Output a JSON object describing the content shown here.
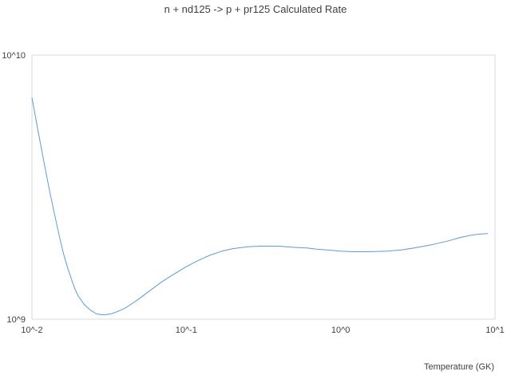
{
  "chart_data": {
    "type": "line",
    "title": "n + nd125 -> p + pr125 Calculated Rate",
    "xlabel": "Temperature (GK)",
    "ylabel": "",
    "x_scale": "log",
    "y_scale": "log",
    "xlim": [
      0.01,
      10
    ],
    "ylim": [
      1000000000,
      10000000000
    ],
    "x_ticks": [
      {
        "value": 0.01,
        "label": "10^-2"
      },
      {
        "value": 0.1,
        "label": "10^-1"
      },
      {
        "value": 1,
        "label": "10^0"
      },
      {
        "value": 10,
        "label": "10^1"
      }
    ],
    "y_ticks": [
      {
        "value": 1000000000,
        "label": "10^9"
      },
      {
        "value": 10000000000,
        "label": "10^10"
      }
    ],
    "grid": false,
    "legend": "none",
    "colors": {
      "series": "#5b9bd5",
      "frame": "#d9d9d9",
      "text": "#404040"
    },
    "series": [
      {
        "x": [
          0.01,
          0.011,
          0.012,
          0.013,
          0.014,
          0.015,
          0.016,
          0.017,
          0.018,
          0.019,
          0.02,
          0.022,
          0.024,
          0.026,
          0.028,
          0.03,
          0.033,
          0.036,
          0.04,
          0.045,
          0.05,
          0.06,
          0.07,
          0.08,
          0.1,
          0.12,
          0.14,
          0.17,
          0.2,
          0.25,
          0.3,
          0.35,
          0.4,
          0.5,
          0.6,
          0.7,
          0.8,
          1.0,
          1.2,
          1.5,
          2.0,
          2.5,
          3.0,
          4.0,
          5.0,
          6.0,
          7.0,
          8.0,
          9.0
        ],
        "y": [
          6900000000.0,
          5100000000.0,
          3900000000.0,
          3070000000.0,
          2500000000.0,
          2080000000.0,
          1770000000.0,
          1570000000.0,
          1420000000.0,
          1300000000.0,
          1220000000.0,
          1130000000.0,
          1080000000.0,
          1050000000.0,
          1040000000.0,
          1040000000.0,
          1050000000.0,
          1070000000.0,
          1100000000.0,
          1150000000.0,
          1200000000.0,
          1300000000.0,
          1390000000.0,
          1460000000.0,
          1580000000.0,
          1670000000.0,
          1740000000.0,
          1810000000.0,
          1850000000.0,
          1880000000.0,
          1890000000.0,
          1890000000.0,
          1890000000.0,
          1870000000.0,
          1860000000.0,
          1840000000.0,
          1830000000.0,
          1810000000.0,
          1800000000.0,
          1800000000.0,
          1810000000.0,
          1830000000.0,
          1860000000.0,
          1920000000.0,
          1980000000.0,
          2040000000.0,
          2080000000.0,
          2100000000.0,
          2110000000.0
        ]
      }
    ]
  }
}
